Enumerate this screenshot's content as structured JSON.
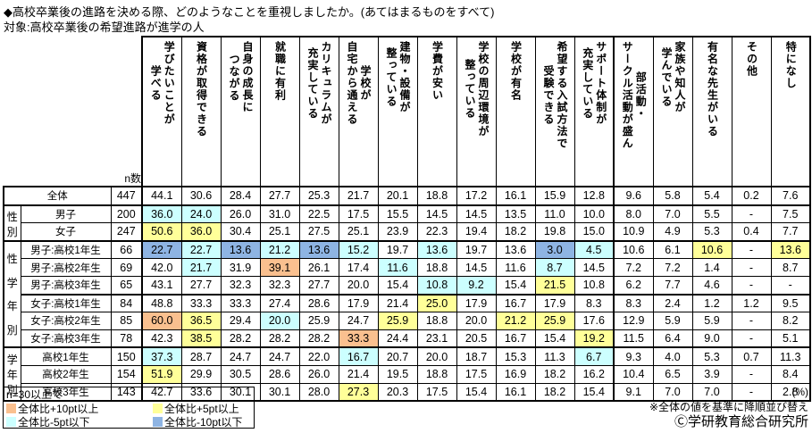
{
  "title": "◆高校卒業後の進路を決める際、どのようなことを重視しましたか。(あてはまるものをすべて)",
  "subject": "対象:高校卒業後の希望進路が進学の人",
  "colors": {
    "p10": "#FAC08F",
    "p5": "#FFFF99",
    "m5": "#CCFFFF",
    "m10": "#8EB4E3"
  },
  "chart_data": {
    "type": "table",
    "unit": "(%)",
    "n_label": "n数",
    "sort_note": "※全体の値を基準に降順並び替え",
    "credit": "Ⓒ学研教育総合研究所",
    "columns": [
      "学びたいことが\n学べる",
      "資格が取得できる",
      "自身の成長に\nつながる",
      "就職に有利",
      "カリキュラムが\n充実している",
      "学校が\n自宅から通える",
      "建物・設備が\n整っている",
      "学費が安い",
      "学校の周辺環境が\n整っている",
      "学校が有名",
      "希望する入試方法で\n受験できる",
      "サポート体制が\n充実している",
      "部活動・\nサークル活動が盛ん",
      "家族や知人が\n学んでいる",
      "有名な先生がいる",
      "その他",
      "特になし"
    ],
    "row_groups": [
      {
        "label": "",
        "rows": [
          {
            "label": "全体",
            "n": "447",
            "values": [
              "44.1",
              "30.6",
              "28.4",
              "27.7",
              "25.3",
              "21.7",
              "20.1",
              "18.8",
              "17.2",
              "16.1",
              "15.9",
              "12.8",
              "9.6",
              "5.8",
              "5.4",
              "0.2",
              "7.6"
            ],
            "hl": [
              "",
              "",
              "",
              "",
              "",
              "",
              "",
              "",
              "",
              "",
              "",
              "",
              "",
              "",
              "",
              "",
              ""
            ]
          }
        ]
      },
      {
        "label": "性別",
        "rows": [
          {
            "label": "男子",
            "n": "200",
            "values": [
              "36.0",
              "24.0",
              "26.0",
              "31.0",
              "22.5",
              "17.5",
              "15.5",
              "14.5",
              "14.5",
              "13.5",
              "11.0",
              "10.0",
              "8.0",
              "7.0",
              "5.5",
              "-",
              "7.5"
            ],
            "hl": [
              "m5",
              "m5",
              "",
              "",
              "",
              "",
              "",
              "",
              "",
              "",
              "",
              "",
              "",
              "",
              "",
              "",
              ""
            ]
          },
          {
            "label": "女子",
            "n": "247",
            "values": [
              "50.6",
              "36.0",
              "30.4",
              "25.1",
              "27.5",
              "25.1",
              "23.9",
              "22.3",
              "19.4",
              "18.2",
              "19.8",
              "15.0",
              "10.9",
              "4.9",
              "5.3",
              "0.4",
              "7.7"
            ],
            "hl": [
              "p5",
              "p5",
              "",
              "",
              "",
              "",
              "",
              "",
              "",
              "",
              "",
              "",
              "",
              "",
              "",
              "",
              ""
            ]
          }
        ]
      },
      {
        "label": "性学年別",
        "rows": [
          {
            "label": "男子:高校1年生",
            "n": "66",
            "values": [
              "22.7",
              "22.7",
              "13.6",
              "21.2",
              "13.6",
              "15.2",
              "19.7",
              "13.6",
              "19.7",
              "13.6",
              "3.0",
              "4.5",
              "10.6",
              "6.1",
              "10.6",
              "-",
              "13.6"
            ],
            "hl": [
              "m10",
              "m5",
              "m10",
              "m5",
              "m10",
              "m5",
              "",
              "m5",
              "",
              "",
              "m10",
              "m5",
              "",
              "",
              "p5",
              "",
              "p5"
            ]
          },
          {
            "label": "男子:高校2年生",
            "n": "69",
            "values": [
              "42.0",
              "21.7",
              "31.9",
              "39.1",
              "26.1",
              "17.4",
              "11.6",
              "18.8",
              "14.5",
              "11.6",
              "8.7",
              "14.5",
              "7.2",
              "7.2",
              "1.4",
              "-",
              "8.7"
            ],
            "hl": [
              "",
              "m5",
              "",
              "p10",
              "",
              "",
              "m5",
              "",
              "",
              "",
              "m5",
              "",
              "",
              "",
              "",
              "",
              ""
            ]
          },
          {
            "label": "男子:高校3年生",
            "n": "65",
            "values": [
              "43.1",
              "27.7",
              "32.3",
              "32.3",
              "27.7",
              "20.0",
              "15.4",
              "10.8",
              "9.2",
              "15.4",
              "21.5",
              "10.8",
              "6.2",
              "7.7",
              "4.6",
              "-",
              "-"
            ],
            "hl": [
              "",
              "",
              "",
              "",
              "",
              "",
              "",
              "m5",
              "m5",
              "",
              "p5",
              "",
              "",
              "",
              "",
              "",
              ""
            ]
          },
          {
            "label": "女子:高校1年生",
            "n": "84",
            "thick_top": true,
            "values": [
              "48.8",
              "33.3",
              "33.3",
              "27.4",
              "28.6",
              "17.9",
              "21.4",
              "25.0",
              "17.9",
              "16.7",
              "17.9",
              "8.3",
              "8.3",
              "2.4",
              "1.2",
              "1.2",
              "9.5"
            ],
            "hl": [
              "",
              "",
              "",
              "",
              "",
              "",
              "",
              "p5",
              "",
              "",
              "",
              "",
              "",
              "",
              "",
              "",
              ""
            ]
          },
          {
            "label": "女子:高校2年生",
            "n": "85",
            "values": [
              "60.0",
              "36.5",
              "29.4",
              "20.0",
              "25.9",
              "24.7",
              "25.9",
              "18.8",
              "20.0",
              "21.2",
              "25.9",
              "17.6",
              "12.9",
              "5.9",
              "5.9",
              "-",
              "8.2"
            ],
            "hl": [
              "p10",
              "p5",
              "",
              "m5",
              "",
              "",
              "p5",
              "",
              "",
              "p5",
              "p5",
              "",
              "",
              "",
              "",
              "",
              ""
            ]
          },
          {
            "label": "女子:高校3年生",
            "n": "78",
            "values": [
              "42.3",
              "38.5",
              "28.2",
              "28.2",
              "28.2",
              "33.3",
              "24.4",
              "23.1",
              "20.5",
              "16.7",
              "15.4",
              "19.2",
              "11.5",
              "6.4",
              "9.0",
              "-",
              "5.1"
            ],
            "hl": [
              "",
              "p5",
              "",
              "",
              "",
              "p10",
              "",
              "",
              "",
              "",
              "",
              "p5",
              "",
              "",
              "",
              "",
              ""
            ]
          }
        ]
      },
      {
        "label": "学年別",
        "rows": [
          {
            "label": "高校1年生",
            "n": "150",
            "values": [
              "37.3",
              "28.7",
              "24.7",
              "24.7",
              "22.0",
              "16.7",
              "20.7",
              "20.0",
              "18.7",
              "15.3",
              "11.3",
              "6.7",
              "9.3",
              "4.0",
              "5.3",
              "0.7",
              "11.3"
            ],
            "hl": [
              "m5",
              "",
              "",
              "",
              "",
              "m5",
              "",
              "",
              "",
              "",
              "",
              "m5",
              "",
              "",
              "",
              "",
              ""
            ]
          },
          {
            "label": "高校2年生",
            "n": "154",
            "values": [
              "51.9",
              "29.9",
              "30.5",
              "28.6",
              "26.0",
              "21.4",
              "19.5",
              "18.8",
              "17.5",
              "16.9",
              "18.2",
              "16.2",
              "10.4",
              "6.5",
              "3.9",
              "-",
              "8.4"
            ],
            "hl": [
              "p5",
              "",
              "",
              "",
              "",
              "",
              "",
              "",
              "",
              "",
              "",
              "",
              "",
              "",
              "",
              "",
              ""
            ]
          },
          {
            "label": "高校3年生",
            "n": "143",
            "values": [
              "42.7",
              "33.6",
              "30.1",
              "30.1",
              "28.0",
              "27.3",
              "20.3",
              "17.5",
              "15.4",
              "16.1",
              "18.2",
              "15.4",
              "9.1",
              "7.0",
              "7.0",
              "-",
              "2.8"
            ],
            "hl": [
              "",
              "",
              "",
              "",
              "",
              "p5",
              "",
              "",
              "",
              "",
              "",
              "",
              "",
              "",
              "",
              "",
              ""
            ]
          }
        ]
      }
    ],
    "legend": {
      "condition": "n=30以上で",
      "entries": [
        {
          "key": "p10",
          "label": "全体比+10pt以上"
        },
        {
          "key": "p5",
          "label": "全体比+5pt以上"
        },
        {
          "key": "m5",
          "label": "全体比-5pt以下"
        },
        {
          "key": "m10",
          "label": "全体比-10pt以下"
        }
      ]
    }
  }
}
